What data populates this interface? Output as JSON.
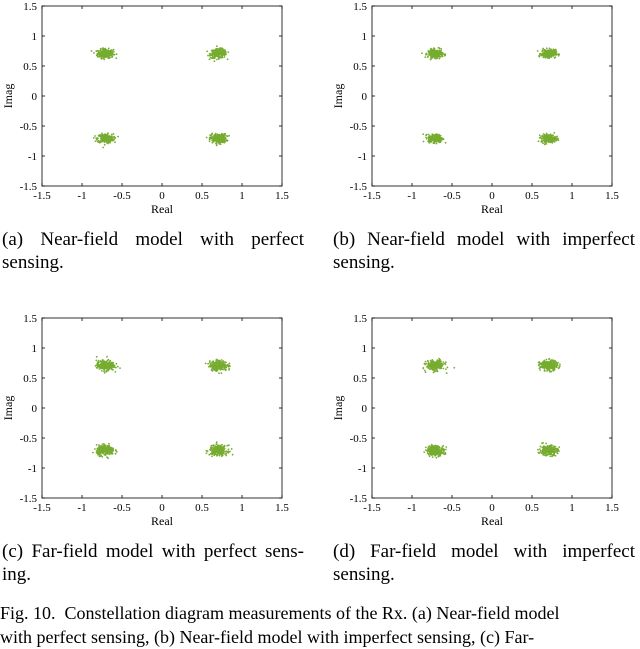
{
  "chart_data": [
    {
      "type": "scatter",
      "xlabel": "Real",
      "ylabel": "Imag",
      "xlim": [
        -1.5,
        1.5
      ],
      "ylim": [
        -1.5,
        1.5
      ],
      "xticks": [
        "-1.5",
        "-1",
        "-0.5",
        "0",
        "0.5",
        "1",
        "1.5"
      ],
      "yticks": [
        "1.5",
        "1",
        "0.5",
        "0",
        "-0.5",
        "-1",
        "-1.5"
      ],
      "marker_color": "#77ac30",
      "series": [
        {
          "points": [
            [
              -0.707,
              0.707
            ],
            [
              0.707,
              0.707
            ],
            [
              -0.707,
              -0.707
            ],
            [
              0.707,
              -0.707
            ]
          ],
          "spread": 0.05
        }
      ],
      "grid": false
    },
    {
      "type": "scatter",
      "xlabel": "Real",
      "ylabel": "Imag",
      "xlim": [
        -1.5,
        1.5
      ],
      "ylim": [
        -1.5,
        1.5
      ],
      "xticks": [
        "-1.5",
        "-1",
        "-0.5",
        "0",
        "0.5",
        "1",
        "1.5"
      ],
      "yticks": [
        "1.5",
        "1",
        "0.5",
        "0",
        "-0.5",
        "-1",
        "-1.5"
      ],
      "marker_color": "#77ac30",
      "series": [
        {
          "points": [
            [
              -0.707,
              0.707
            ],
            [
              0.707,
              0.707
            ],
            [
              -0.707,
              -0.707
            ],
            [
              0.707,
              -0.707
            ]
          ],
          "spread": 0.045
        }
      ],
      "grid": false
    },
    {
      "type": "scatter",
      "xlabel": "Real",
      "ylabel": "Imag",
      "xlim": [
        -1.5,
        1.5
      ],
      "ylim": [
        -1.5,
        1.5
      ],
      "xticks": [
        "-1.5",
        "-1",
        "-0.5",
        "0",
        "0.5",
        "1",
        "1.5"
      ],
      "yticks": [
        "1.5",
        "1",
        "0.5",
        "0",
        "-0.5",
        "-1",
        "-1.5"
      ],
      "marker_color": "#77ac30",
      "series": [
        {
          "points": [
            [
              -0.707,
              0.707
            ],
            [
              0.707,
              0.707
            ],
            [
              -0.707,
              -0.707
            ],
            [
              0.707,
              -0.707
            ]
          ],
          "spread": 0.055
        }
      ],
      "grid": false
    },
    {
      "type": "scatter",
      "xlabel": "Real",
      "ylabel": "Imag",
      "xlim": [
        -1.5,
        1.5
      ],
      "ylim": [
        -1.5,
        1.5
      ],
      "xticks": [
        "-1.5",
        "-1",
        "-0.5",
        "0",
        "0.5",
        "1",
        "1.5"
      ],
      "yticks": [
        "1.5",
        "1",
        "0.5",
        "0",
        "-0.5",
        "-1",
        "-1.5"
      ],
      "marker_color": "#77ac30",
      "series": [
        {
          "points": [
            [
              -0.707,
              0.707
            ],
            [
              0.707,
              0.707
            ],
            [
              -0.707,
              -0.707
            ],
            [
              0.707,
              -0.707
            ]
          ],
          "spread": 0.055
        }
      ],
      "grid": false
    }
  ],
  "captions": {
    "a": "(a)  Near-field  model  with  perfect sensing.",
    "b": "(b)  Near-field  model  with  imperfect sensing.",
    "c": "(c) Far-field model with perfect sens-ing.",
    "d": "(d)   Far-field   model   with   imperfect sensing."
  },
  "figure_caption": {
    "line1": "Fig. 10.  Constellation diagram measurements of the Rx. (a) Near-field model",
    "line2": "with perfect sensing, (b) Near-field model with imperfect sensing, (c) Far-"
  }
}
